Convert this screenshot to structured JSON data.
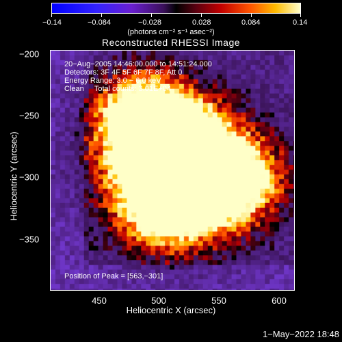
{
  "colorbar": {
    "ticks": [
      "−0.14",
      "−0.084",
      "−0.028",
      "0.028",
      "0.084",
      "0.14"
    ],
    "units": "(photons cm⁻² s⁻¹ asec⁻²)"
  },
  "title": "Reconstructed RHESSI Image",
  "info": {
    "time": "20−Aug−2005 14:46:00.000 to 14:51:24.000",
    "detectors": "Detectors: 3F 4F 5F 6F 7F 8F, Att 0",
    "energy": "Energy Range: 3.0 − 6.0 keV",
    "clean": "Clean     Total counts: 3.01E+04",
    "peak": "Position of Peak = [563,−301]"
  },
  "axes": {
    "xlabel": "Heliocentric X (arcsec)",
    "ylabel": "Heliocentric Y (arcsec)",
    "xticks": [
      "450",
      "500",
      "550",
      "600"
    ],
    "yticks": [
      "−200",
      "−250",
      "−300",
      "−350"
    ]
  },
  "footer": "1−May−2022 18:48"
}
